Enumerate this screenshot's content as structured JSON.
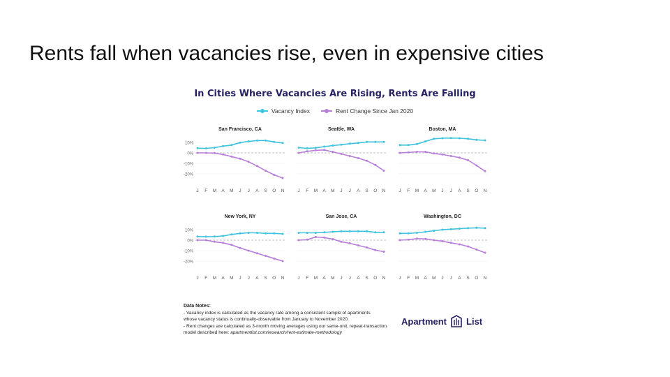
{
  "slide": {
    "title": "Rents fall when vacancies rise, even in expensive cities"
  },
  "colors": {
    "vacancy": "#3ec3dd",
    "rent": "#b87fd9",
    "title": "#262262"
  },
  "legend": {
    "vacancy_label": "Vacancy Index",
    "rent_label": "Rent Change Since Jan 2020"
  },
  "chart_data": {
    "type": "line",
    "title": "In Cities Where Vacancies Are Rising, Rents Are Falling",
    "x": [
      "J",
      "F",
      "M",
      "A",
      "M",
      "J",
      "J",
      "A",
      "S",
      "O",
      "N"
    ],
    "y_ticks": [
      "10%",
      "0%",
      "-10%",
      "-20%"
    ],
    "ylim": [
      -24,
      16
    ],
    "series_names": [
      "Vacancy Index",
      "Rent Change Since Jan 2020"
    ],
    "panels": [
      {
        "title": "San Francisco, CA",
        "vacancy": [
          4.5,
          4.3,
          5.0,
          6.5,
          7.5,
          9.8,
          11.0,
          11.8,
          11.8,
          10.5,
          9.5
        ],
        "rent": [
          0,
          0,
          -0.2,
          -1.5,
          -3.5,
          -5.5,
          -8.5,
          -12.5,
          -17.0,
          -21.0,
          -24.0
        ]
      },
      {
        "title": "Seattle, WA",
        "vacancy": [
          5.0,
          4.3,
          4.8,
          6.0,
          7.0,
          7.8,
          8.8,
          9.5,
          10.5,
          10.5,
          10.5
        ],
        "rent": [
          0,
          1.5,
          2.5,
          2.8,
          1.0,
          -1.0,
          -3.0,
          -5.0,
          -7.5,
          -11.5,
          -17.0
        ]
      },
      {
        "title": "Boston, MA",
        "vacancy": [
          7.5,
          7.5,
          8.5,
          11.0,
          13.5,
          14.0,
          14.2,
          14.0,
          13.5,
          12.5,
          12.0
        ],
        "rent": [
          0,
          0.5,
          1.0,
          1.0,
          -0.5,
          -1.5,
          -3.0,
          -4.5,
          -7.0,
          -12.0,
          -17.5
        ]
      },
      {
        "title": "New York, NY",
        "vacancy": [
          3.5,
          3.3,
          3.5,
          4.0,
          5.5,
          6.5,
          7.0,
          7.0,
          6.5,
          6.5,
          6.0
        ],
        "rent": [
          0,
          0,
          -1.5,
          -2.5,
          -4.5,
          -7.5,
          -10.0,
          -12.5,
          -15.0,
          -17.5,
          -20.0
        ]
      },
      {
        "title": "San Jose, CA",
        "vacancy": [
          7.0,
          7.0,
          7.0,
          7.5,
          8.0,
          8.5,
          8.5,
          8.5,
          8.5,
          7.5,
          7.5
        ],
        "rent": [
          0,
          0.5,
          3.0,
          2.5,
          1.0,
          -1.5,
          -3.0,
          -5.0,
          -7.0,
          -9.5,
          -11.0
        ]
      },
      {
        "title": "Washington, DC",
        "vacancy": [
          6.5,
          6.5,
          7.0,
          8.0,
          9.0,
          10.0,
          10.5,
          11.0,
          11.5,
          11.8,
          11.5
        ],
        "rent": [
          0,
          0.5,
          1.5,
          1.2,
          0,
          -1.0,
          -2.5,
          -4.0,
          -6.0,
          -9.0,
          -12.0
        ]
      }
    ]
  },
  "notes": {
    "heading": "Data Notes:",
    "line1": "- Vacancy index is calculated as the vacancy rate among a consistent sample of apartments",
    "line2": "whose vacancy status is continually-observable from January to November 2020.",
    "line3": "- Rent changes are calculated as 3-month moving averages using our same-unit, repeat-transaction",
    "line4_prefix": "model described here: ",
    "line4_link": "apartmentlist.com/research/rent-estimate-methodology"
  },
  "logo": {
    "text_left": "Apartment",
    "text_right": "List"
  }
}
